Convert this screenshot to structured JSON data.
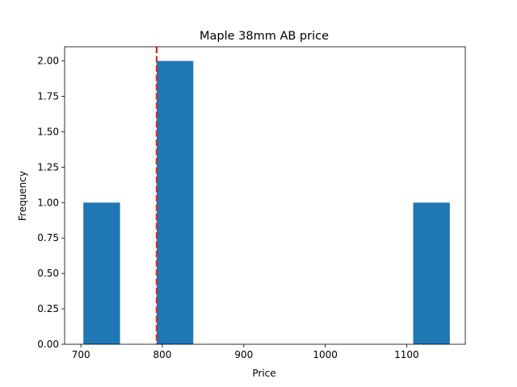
{
  "chart_data": {
    "type": "histogram",
    "title": "Maple 38mm AB price",
    "xlabel": "Price",
    "ylabel": "Frequency",
    "xlim": [
      680,
      1172
    ],
    "ylim": [
      0,
      2.1
    ],
    "xticks": [
      700,
      800,
      900,
      1000,
      1100
    ],
    "yticks": [
      "0.00",
      "0.25",
      "0.50",
      "0.75",
      "1.00",
      "1.25",
      "1.50",
      "1.75",
      "2.00"
    ],
    "bins": [
      {
        "x0": 703,
        "x1": 748,
        "count": 1
      },
      {
        "x0": 748,
        "x1": 793,
        "count": 0
      },
      {
        "x0": 793,
        "x1": 838,
        "count": 2
      },
      {
        "x0": 838,
        "x1": 883,
        "count": 0
      },
      {
        "x0": 883,
        "x1": 928,
        "count": 0
      },
      {
        "x0": 928,
        "x1": 973,
        "count": 0
      },
      {
        "x0": 973,
        "x1": 1018,
        "count": 0
      },
      {
        "x0": 1018,
        "x1": 1063,
        "count": 0
      },
      {
        "x0": 1063,
        "x1": 1108,
        "count": 0
      },
      {
        "x0": 1108,
        "x1": 1153,
        "count": 1
      }
    ],
    "reference_line": {
      "x": 793,
      "color": "#d62728",
      "style": "dashed"
    },
    "bar_color": "#1f77b4",
    "grid": false,
    "legend": "none"
  }
}
